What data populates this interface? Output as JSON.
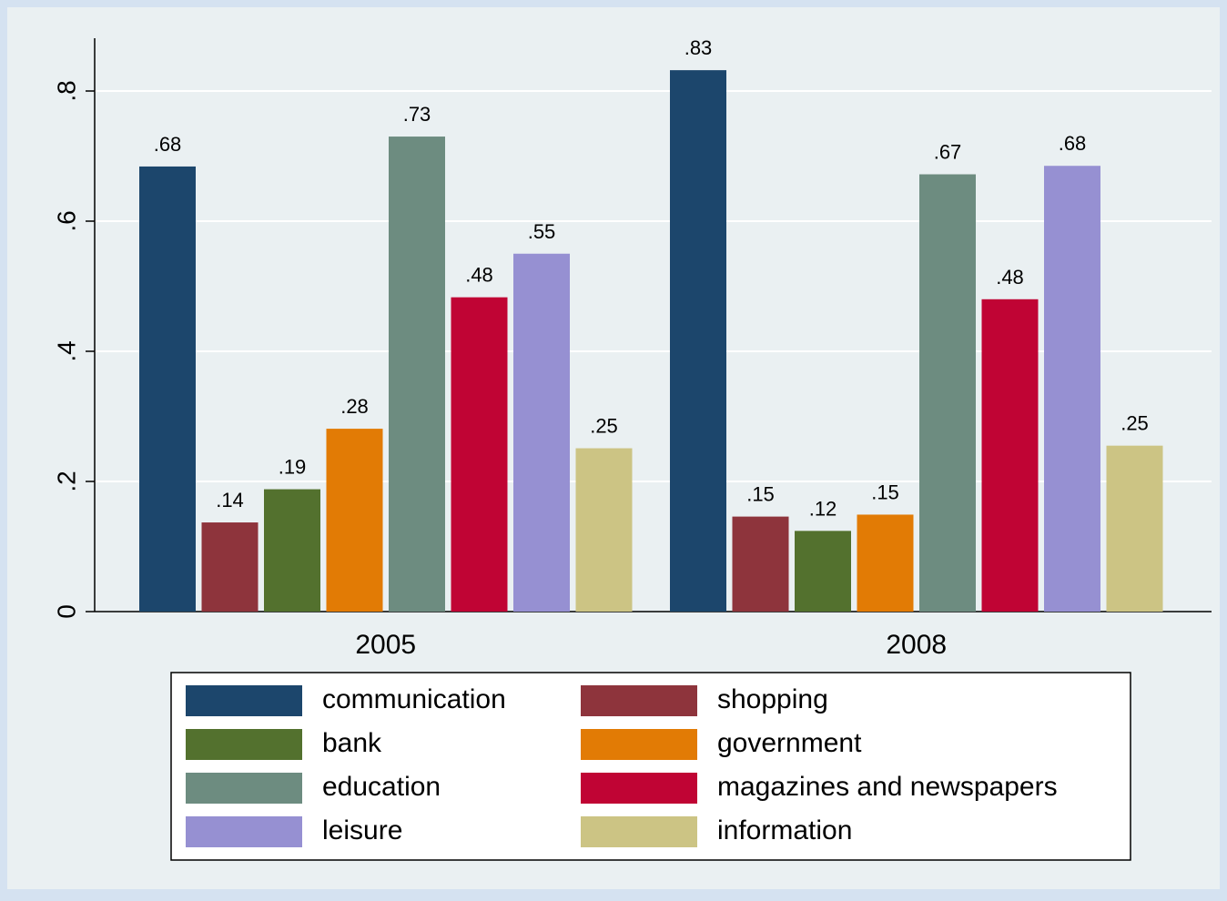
{
  "chart_data": {
    "type": "bar",
    "categories": [
      "2005",
      "2008"
    ],
    "series": [
      {
        "name": "communication",
        "color": "#1c466c",
        "values": [
          0.684,
          0.832
        ],
        "labels": [
          ".68",
          ".83"
        ]
      },
      {
        "name": "shopping",
        "color": "#8e343c",
        "values": [
          0.137,
          0.146
        ],
        "labels": [
          ".14",
          ".15"
        ]
      },
      {
        "name": "bank",
        "color": "#53712e",
        "values": [
          0.188,
          0.124
        ],
        "labels": [
          ".19",
          ".12"
        ]
      },
      {
        "name": "government",
        "color": "#e27b05",
        "values": [
          0.281,
          0.149
        ],
        "labels": [
          ".28",
          ".15"
        ]
      },
      {
        "name": "education",
        "color": "#6d8c80",
        "values": [
          0.73,
          0.672
        ],
        "labels": [
          ".73",
          ".67"
        ]
      },
      {
        "name": "magazines and newspapers",
        "color": "#c00434",
        "values": [
          0.483,
          0.48
        ],
        "labels": [
          ".48",
          ".48"
        ]
      },
      {
        "name": "leisure",
        "color": "#9690d2",
        "values": [
          0.55,
          0.685
        ],
        "labels": [
          ".55",
          ".68"
        ]
      },
      {
        "name": "information",
        "color": "#ccc484",
        "values": [
          0.251,
          0.255
        ],
        "labels": [
          ".25",
          ".25"
        ]
      }
    ],
    "yticks": [
      0,
      0.2,
      0.4,
      0.6,
      0.8
    ],
    "ytick_labels": [
      "0",
      ".2",
      ".4",
      ".6",
      ".8"
    ],
    "ylim": [
      0,
      0.88
    ],
    "grid": true,
    "legend_position": "bottom",
    "title": "",
    "xlabel": "",
    "ylabel": "",
    "colors": {
      "page_background": "#d5e2f1",
      "plot_background": "#eaf0f2",
      "gridline": "#ffffff",
      "axis": "#000000"
    }
  }
}
